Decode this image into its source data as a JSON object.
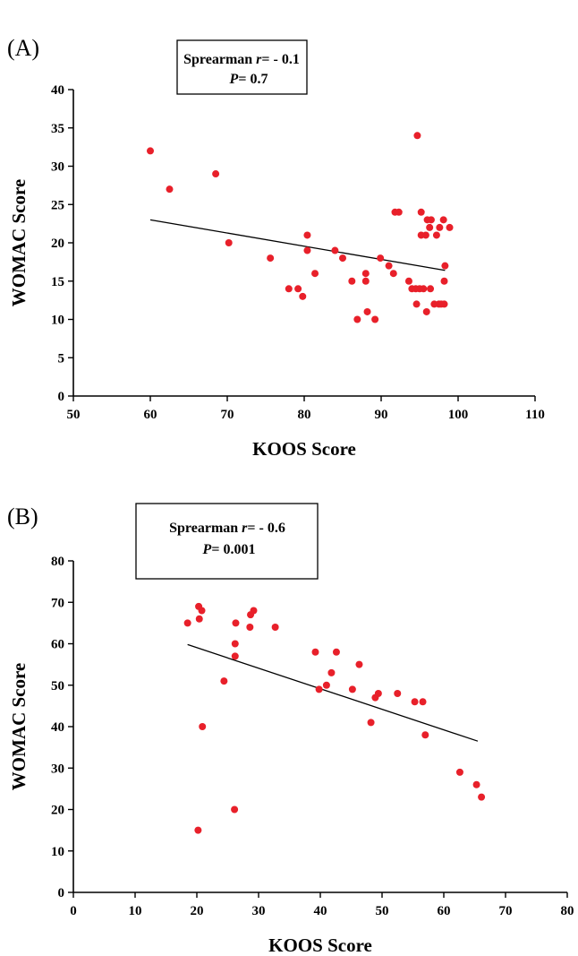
{
  "chart_data": [
    {
      "type": "scatter",
      "panel_label": "(A)",
      "stats": {
        "method_label": "Sprearman",
        "r_symbol": "r",
        "r_text": "= - 0.1",
        "p_symbol": "P",
        "p_text": "= 0.7"
      },
      "xlabel": "KOOS Score",
      "ylabel": "WOMAC Score",
      "xlim": [
        50,
        110
      ],
      "ylim": [
        0,
        40
      ],
      "xticks": [
        50,
        60,
        70,
        80,
        90,
        100,
        110
      ],
      "yticks": [
        0,
        5,
        10,
        15,
        20,
        25,
        30,
        35,
        40
      ],
      "grid": false,
      "series": [
        {
          "color": "#e8202a",
          "x": [
            60,
            62.5,
            68.5,
            70.2,
            75.6,
            78,
            79.2,
            79.8,
            80.4,
            80.4,
            81.4,
            84,
            85,
            86.2,
            86.9,
            88,
            88,
            88.2,
            89.2,
            89.9,
            91,
            91.6,
            91.8,
            92.3,
            93.6,
            94,
            94.5,
            94.6,
            94.7,
            95,
            95.2,
            95.2,
            95.5,
            95.8,
            95.9,
            96,
            96.3,
            96.4,
            96.5,
            96.9,
            97.2,
            97.5,
            97.6,
            97.8,
            98.1,
            98.2,
            98.2,
            98.3,
            98.9
          ],
          "y": [
            32,
            27,
            29,
            20,
            18,
            14,
            14,
            13,
            21,
            19,
            16,
            19,
            18,
            15,
            10,
            15,
            16,
            11,
            10,
            18,
            17,
            16,
            24,
            24,
            15,
            14,
            14,
            12,
            34,
            14,
            21,
            24,
            14,
            21,
            11,
            23,
            22,
            14,
            23,
            12,
            21,
            12,
            22,
            12,
            23,
            12,
            15,
            17,
            22
          ]
        }
      ],
      "trendline": {
        "x": [
          60,
          98.3
        ],
        "y": [
          23,
          16.4
        ]
      }
    },
    {
      "type": "scatter",
      "panel_label": "(B)",
      "stats": {
        "method_label": "Sprearman",
        "r_symbol": "r",
        "r_text": "= - 0.6",
        "p_symbol": "P",
        "p_text": "= 0.001"
      },
      "xlabel": "KOOS Score",
      "ylabel": "WOMAC Score",
      "xlim": [
        0,
        80
      ],
      "ylim": [
        0,
        80
      ],
      "xticks": [
        0,
        10,
        20,
        30,
        40,
        50,
        60,
        70,
        80
      ],
      "yticks": [
        0,
        10,
        20,
        30,
        40,
        50,
        60,
        70,
        80
      ],
      "grid": false,
      "series": [
        {
          "color": "#e8202a",
          "x": [
            18.5,
            20.2,
            20.3,
            20.4,
            20.8,
            20.9,
            24.4,
            26.1,
            26.2,
            26.2,
            26.3,
            28.6,
            28.7,
            29.2,
            32.7,
            39.2,
            39.8,
            41,
            41.8,
            42.6,
            45.2,
            46.3,
            48.2,
            48.9,
            49.4,
            52.5,
            55.3,
            56.6,
            57,
            62.6,
            65.3,
            66.1
          ],
          "y": [
            65,
            15,
            69,
            66,
            68,
            40,
            51,
            20,
            57,
            60,
            65,
            64,
            67,
            68,
            64,
            58,
            49,
            50,
            53,
            58,
            49,
            55,
            41,
            47,
            48,
            48,
            46,
            46,
            38,
            29,
            26,
            23
          ]
        }
      ],
      "trendline": {
        "x": [
          18.5,
          65.5
        ],
        "y": [
          59.8,
          36.5
        ]
      }
    }
  ]
}
